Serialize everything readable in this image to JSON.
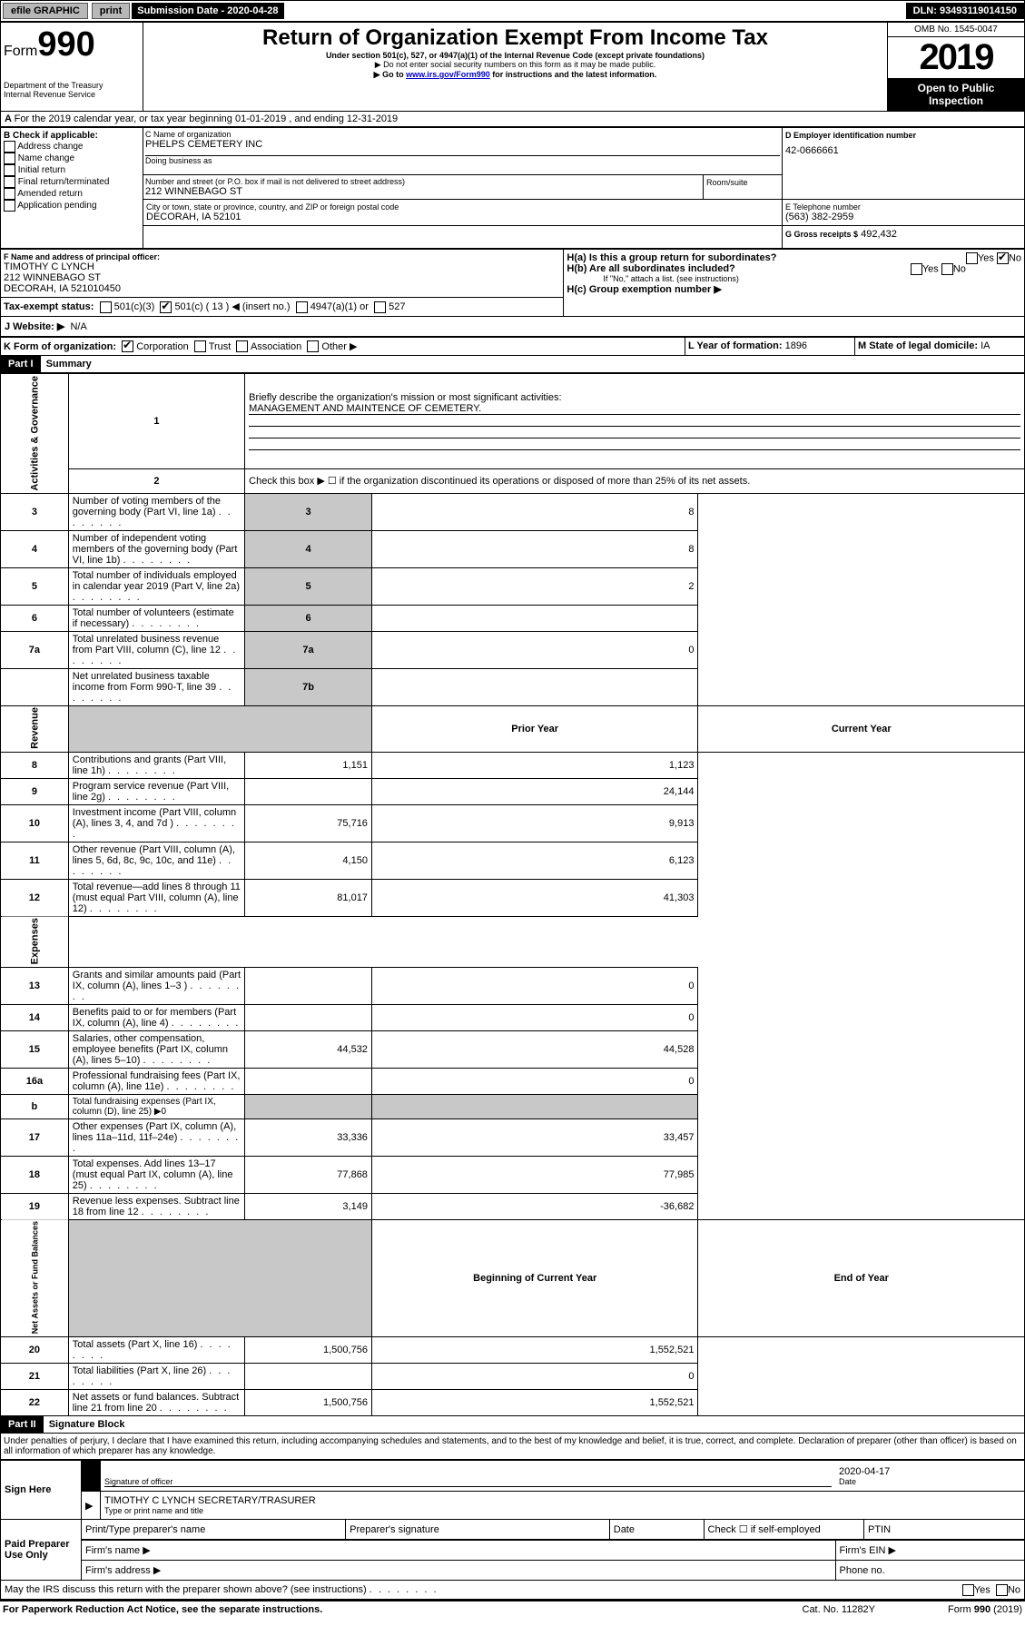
{
  "topbar": {
    "efile": "efile GRAPHIC",
    "print": "print",
    "sub_date_label": "Submission Date - 2020-04-28",
    "dln": "DLN: 93493119014150"
  },
  "header": {
    "form_word": "Form",
    "form_num": "990",
    "title": "Return of Organization Exempt From Income Tax",
    "subtitle": "Under section 501(c), 527, or 4947(a)(1) of the Internal Revenue Code (except private foundations)",
    "note1": "▶ Do not enter social security numbers on this form as it may be made public.",
    "note2_pre": "▶ Go to ",
    "note2_link": "www.irs.gov/Form990",
    "note2_post": " for instructions and the latest information.",
    "dept": "Department of the Treasury\nInternal Revenue Service",
    "omb": "OMB No. 1545-0047",
    "year": "2019",
    "open": "Open to Public Inspection"
  },
  "a_line": "For the 2019 calendar year, or tax year beginning 01-01-2019   , and ending 12-31-2019",
  "b": {
    "label": "B Check if applicable:",
    "items": [
      "Address change",
      "Name change",
      "Initial return",
      "Final return/terminated",
      "Amended return",
      "Application pending"
    ]
  },
  "c": {
    "name_label": "C Name of organization",
    "name": "PHELPS CEMETERY INC",
    "dba_label": "Doing business as",
    "addr_label": "Number and street (or P.O. box if mail is not delivered to street address)",
    "room_label": "Room/suite",
    "addr": "212 WINNEBAGO ST",
    "city_label": "City or town, state or province, country, and ZIP or foreign postal code",
    "city": "DECORAH, IA  52101"
  },
  "d": {
    "label": "D Employer identification number",
    "value": "42-0666661"
  },
  "e": {
    "label": "E Telephone number",
    "value": "(563) 382-2959"
  },
  "g": {
    "label": "G Gross receipts $",
    "value": "492,432"
  },
  "f": {
    "label": "F  Name and address of principal officer:",
    "name": "TIMOTHY C LYNCH",
    "addr1": "212 WINNEBAGO ST",
    "addr2": "DECORAH, IA  521010450"
  },
  "h": {
    "a": "H(a)  Is this a group return for subordinates?",
    "b": "H(b)  Are all subordinates included?",
    "bnote": "If \"No,\" attach a list. (see instructions)",
    "c": "H(c)  Group exemption number ▶",
    "yes": "Yes",
    "no": "No"
  },
  "i": {
    "label": "Tax-exempt status:",
    "o1": "501(c)(3)",
    "o2": "501(c) ( 13 ) ◀ (insert no.)",
    "o3": "4947(a)(1) or",
    "o4": "527"
  },
  "j": {
    "label": "J   Website: ▶",
    "value": "N/A"
  },
  "k": {
    "label": "K Form of organization:",
    "corp": "Corporation",
    "trust": "Trust",
    "assoc": "Association",
    "other": "Other ▶"
  },
  "l": {
    "label": "L Year of formation:",
    "value": "1896"
  },
  "m": {
    "label": "M State of legal domicile:",
    "value": "IA"
  },
  "part1": {
    "header": "Part I",
    "title": "Summary",
    "line1_label": "Briefly describe the organization's mission or most significant activities:",
    "line1_value": "MANAGEMENT AND MAINTENCE OF CEMETERY.",
    "line2": "Check this box ▶ ☐  if the organization discontinued its operations or disposed of more than 25% of its net assets.",
    "vlabel_ag": "Activities & Governance",
    "vlabel_rev": "Revenue",
    "vlabel_exp": "Expenses",
    "vlabel_net": "Net Assets or Fund Balances",
    "col_prior": "Prior Year",
    "col_current": "Current Year",
    "col_beg": "Beginning of Current Year",
    "col_end": "End of Year",
    "rows_top": [
      {
        "n": "3",
        "t": "Number of voting members of the governing body (Part VI, line 1a)",
        "g": "3",
        "v": "8"
      },
      {
        "n": "4",
        "t": "Number of independent voting members of the governing body (Part VI, line 1b)",
        "g": "4",
        "v": "8"
      },
      {
        "n": "5",
        "t": "Total number of individuals employed in calendar year 2019 (Part V, line 2a)",
        "g": "5",
        "v": "2"
      },
      {
        "n": "6",
        "t": "Total number of volunteers (estimate if necessary)",
        "g": "6",
        "v": ""
      },
      {
        "n": "7a",
        "t": "Total unrelated business revenue from Part VIII, column (C), line 12",
        "g": "7a",
        "v": "0"
      },
      {
        "n": "",
        "t": "Net unrelated business taxable income from Form 990-T, line 39",
        "g": "7b",
        "v": ""
      }
    ],
    "rows_rev": [
      {
        "n": "8",
        "t": "Contributions and grants (Part VIII, line 1h)",
        "p": "1,151",
        "c": "1,123"
      },
      {
        "n": "9",
        "t": "Program service revenue (Part VIII, line 2g)",
        "p": "",
        "c": "24,144"
      },
      {
        "n": "10",
        "t": "Investment income (Part VIII, column (A), lines 3, 4, and 7d )",
        "p": "75,716",
        "c": "9,913"
      },
      {
        "n": "11",
        "t": "Other revenue (Part VIII, column (A), lines 5, 6d, 8c, 9c, 10c, and 11e)",
        "p": "4,150",
        "c": "6,123"
      },
      {
        "n": "12",
        "t": "Total revenue—add lines 8 through 11 (must equal Part VIII, column (A), line 12)",
        "p": "81,017",
        "c": "41,303"
      }
    ],
    "rows_exp": [
      {
        "n": "13",
        "t": "Grants and similar amounts paid (Part IX, column (A), lines 1–3 )",
        "p": "",
        "c": "0"
      },
      {
        "n": "14",
        "t": "Benefits paid to or for members (Part IX, column (A), line 4)",
        "p": "",
        "c": "0"
      },
      {
        "n": "15",
        "t": "Salaries, other compensation, employee benefits (Part IX, column (A), lines 5–10)",
        "p": "44,532",
        "c": "44,528"
      },
      {
        "n": "16a",
        "t": "Professional fundraising fees (Part IX, column (A), line 11e)",
        "p": "",
        "c": "0"
      },
      {
        "n": "b",
        "t": "Total fundraising expenses (Part IX, column (D), line 25) ▶0",
        "p": "GREY",
        "c": "GREY"
      },
      {
        "n": "17",
        "t": "Other expenses (Part IX, column (A), lines 11a–11d, 11f–24e)",
        "p": "33,336",
        "c": "33,457"
      },
      {
        "n": "18",
        "t": "Total expenses. Add lines 13–17 (must equal Part IX, column (A), line 25)",
        "p": "77,868",
        "c": "77,985"
      },
      {
        "n": "19",
        "t": "Revenue less expenses. Subtract line 18 from line 12",
        "p": "3,149",
        "c": "-36,682"
      }
    ],
    "rows_net": [
      {
        "n": "20",
        "t": "Total assets (Part X, line 16)",
        "p": "1,500,756",
        "c": "1,552,521"
      },
      {
        "n": "21",
        "t": "Total liabilities (Part X, line 26)",
        "p": "",
        "c": "0"
      },
      {
        "n": "22",
        "t": "Net assets or fund balances. Subtract line 21 from line 20",
        "p": "1,500,756",
        "c": "1,552,521"
      }
    ]
  },
  "part2": {
    "header": "Part II",
    "title": "Signature Block",
    "perjury": "Under penalties of perjury, I declare that I have examined this return, including accompanying schedules and statements, and to the best of my knowledge and belief, it is true, correct, and complete. Declaration of preparer (other than officer) is based on all information of which preparer has any knowledge.",
    "sign_here": "Sign Here",
    "sig_officer": "Signature of officer",
    "sig_date": "2020-04-17",
    "date_label": "Date",
    "typed_name": "TIMOTHY C LYNCH  SECRETARY/TRASURER",
    "typed_label": "Type or print name and title",
    "paid": "Paid Preparer Use Only",
    "pp_name": "Print/Type preparer's name",
    "pp_sig": "Preparer's signature",
    "pp_date": "Date",
    "pp_check": "Check ☐ if self-employed",
    "pp_ptin": "PTIN",
    "firm_name": "Firm's name   ▶",
    "firm_ein": "Firm's EIN ▶",
    "firm_addr": "Firm's address ▶",
    "phone": "Phone no."
  },
  "footer": {
    "discuss": "May the IRS discuss this return with the preparer shown above? (see instructions)",
    "yes": "Yes",
    "no": "No",
    "pra": "For Paperwork Reduction Act Notice, see the separate instructions.",
    "cat": "Cat. No. 11282Y",
    "form": "Form 990 (2019)"
  }
}
